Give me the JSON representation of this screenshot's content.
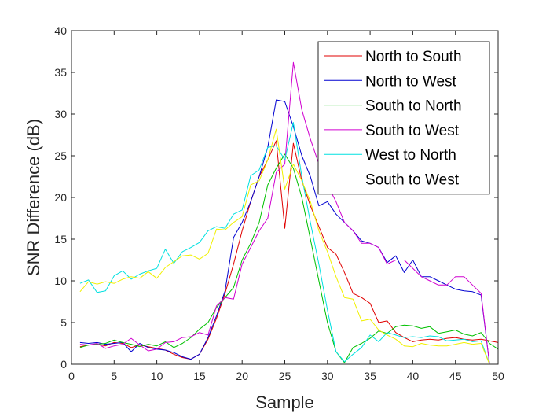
{
  "chart_data": {
    "type": "line",
    "title": "",
    "xlabel": "Sample",
    "ylabel": "SNR Difference (dB)",
    "xlim": [
      0,
      50
    ],
    "ylim": [
      0,
      40
    ],
    "xticks": [
      0,
      5,
      10,
      15,
      20,
      25,
      30,
      35,
      40,
      45,
      50
    ],
    "yticks": [
      0,
      5,
      10,
      15,
      20,
      25,
      30,
      35,
      40
    ],
    "grid": false,
    "legend_position": "top-right",
    "x": [
      1,
      2,
      3,
      4,
      5,
      6,
      7,
      8,
      9,
      10,
      11,
      12,
      13,
      14,
      15,
      16,
      17,
      18,
      19,
      20,
      21,
      22,
      23,
      24,
      25,
      26,
      27,
      28,
      29,
      30,
      31,
      32,
      33,
      34,
      35,
      36,
      37,
      38,
      39,
      40,
      41,
      42,
      43,
      44,
      45,
      46,
      47,
      48,
      49,
      50
    ],
    "series": [
      {
        "name": "North to South",
        "color": "#e00000",
        "values": [
          2.1,
          2.3,
          2.4,
          2.2,
          2.6,
          2.5,
          2.0,
          2.3,
          2.1,
          1.9,
          1.7,
          1.2,
          0.8,
          0.6,
          1.2,
          3.0,
          5.5,
          8.5,
          12.0,
          16.0,
          19.5,
          22.5,
          24.5,
          26.8,
          16.3,
          26.5,
          22.0,
          19.0,
          16.5,
          14.0,
          13.2,
          11.0,
          8.5,
          8.0,
          7.3,
          5.0,
          5.2,
          3.8,
          3.2,
          2.7,
          2.9,
          3.0,
          2.9,
          3.1,
          3.2,
          3.0,
          2.9,
          3.0,
          2.8,
          2.6
        ]
      },
      {
        "name": "North to West",
        "color": "#0000d0",
        "values": [
          2.6,
          2.5,
          2.6,
          2.4,
          2.5,
          2.6,
          1.5,
          2.5,
          2.0,
          1.8,
          1.7,
          1.4,
          0.9,
          0.6,
          1.2,
          3.2,
          5.8,
          8.8,
          15.2,
          17.0,
          19.5,
          22.5,
          26.0,
          31.7,
          31.5,
          28.5,
          25.0,
          22.5,
          19.0,
          19.5,
          18.0,
          17.0,
          16.0,
          14.8,
          14.5,
          14.0,
          12.2,
          13.0,
          11.0,
          12.5,
          10.5,
          10.5,
          10.0,
          9.5,
          9.0,
          8.8,
          8.7,
          8.3,
          0.0,
          0.0
        ]
      },
      {
        "name": "South to North",
        "color": "#00c000",
        "values": [
          2.0,
          2.3,
          2.4,
          2.5,
          2.9,
          2.6,
          2.4,
          2.1,
          2.4,
          2.2,
          2.7,
          2.0,
          2.5,
          3.2,
          4.2,
          5.0,
          6.8,
          8.0,
          9.2,
          12.5,
          14.5,
          17.0,
          21.5,
          23.5,
          25.2,
          23.5,
          20.0,
          15.0,
          10.0,
          5.0,
          1.5,
          0.2,
          2.0,
          2.5,
          3.1,
          4.0,
          3.7,
          4.5,
          4.7,
          4.6,
          4.3,
          4.5,
          3.7,
          3.9,
          4.1,
          3.6,
          3.4,
          3.8,
          2.5,
          1.8
        ]
      },
      {
        "name": "South to West",
        "color": "#d000d0",
        "values": [
          2.4,
          2.3,
          2.5,
          1.9,
          2.2,
          2.4,
          3.1,
          2.3,
          1.6,
          1.8,
          2.6,
          2.7,
          3.2,
          3.3,
          3.8,
          3.5,
          7.0,
          8.0,
          7.8,
          12.0,
          14.0,
          16.0,
          17.5,
          23.0,
          24.0,
          36.2,
          30.5,
          27.0,
          24.0,
          21.5,
          19.5,
          17.0,
          16.0,
          14.5,
          14.5,
          14.0,
          12.0,
          12.5,
          12.5,
          11.5,
          10.5,
          10.0,
          9.5,
          9.5,
          10.5,
          10.5,
          9.5,
          8.5,
          0.0,
          0.0
        ]
      },
      {
        "name": "West to North",
        "color": "#00e0e0",
        "values": [
          9.7,
          10.1,
          8.6,
          8.8,
          10.6,
          11.2,
          10.2,
          10.8,
          11.2,
          11.5,
          13.8,
          12.1,
          13.5,
          14.0,
          14.6,
          16.0,
          16.5,
          16.3,
          18.0,
          18.5,
          22.6,
          23.3,
          26.0,
          26.2,
          24.5,
          29.0,
          22.5,
          17.0,
          12.0,
          6.5,
          1.5,
          0.3,
          1.2,
          2.0,
          3.5,
          2.7,
          3.8,
          3.5,
          3.2,
          3.3,
          3.2,
          3.4,
          3.3,
          2.8,
          2.9,
          3.0,
          2.7,
          2.8,
          0.0,
          0.0
        ]
      },
      {
        "name": "South to West",
        "color": "#f0f000",
        "values": [
          8.7,
          9.9,
          9.6,
          9.9,
          9.7,
          10.2,
          10.5,
          10.3,
          11.1,
          10.3,
          11.6,
          12.3,
          13.0,
          13.1,
          12.6,
          13.3,
          16.2,
          16.1,
          17.0,
          17.7,
          21.5,
          22.0,
          24.5,
          28.2,
          21.0,
          24.0,
          22.0,
          19.5,
          16.0,
          13.5,
          10.5,
          8.0,
          7.8,
          5.2,
          5.4,
          4.1,
          3.5,
          3.0,
          2.2,
          2.1,
          2.5,
          2.3,
          2.2,
          2.2,
          2.4,
          2.6,
          2.4,
          2.5,
          0.0,
          0.0
        ]
      }
    ]
  }
}
